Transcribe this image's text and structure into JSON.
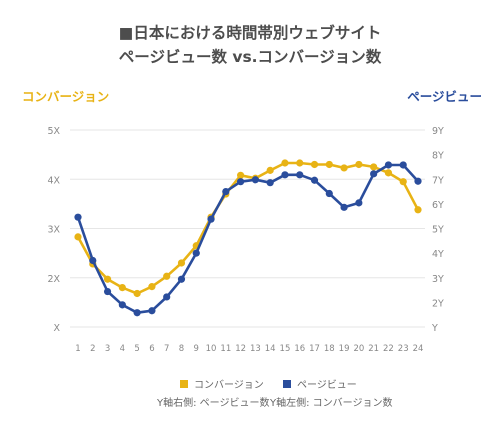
{
  "title": {
    "line1": "■日本における時間帯別ウェブサイト",
    "line2": "ページビュー数 vs.コンバージョン数"
  },
  "axis_titles": {
    "left": "コンバージョン",
    "right": "ページビュー"
  },
  "notes": {
    "right_axis": "Y軸右側: ページビュー数",
    "left_axis": "Y軸左側: コンバージョン数"
  },
  "colors": {
    "conversion": "#e8b315",
    "pageview": "#2a4d9c",
    "grid": "#e6e6e6",
    "tick": "#888888"
  },
  "chart_data": {
    "type": "line",
    "x": [
      1,
      2,
      3,
      4,
      5,
      6,
      7,
      8,
      9,
      10,
      11,
      12,
      13,
      14,
      15,
      16,
      17,
      18,
      19,
      20,
      21,
      22,
      23,
      24
    ],
    "x_tick_labels": [
      "1",
      "2",
      "3",
      "4",
      "5",
      "6",
      "7",
      "8",
      "9",
      "10",
      "11",
      "12",
      "13",
      "14",
      "15",
      "16",
      "17",
      "18",
      "19",
      "20",
      "21",
      "22",
      "23",
      "24"
    ],
    "left_axis": {
      "ticks": [
        1,
        2,
        3,
        4,
        5
      ],
      "tick_labels": [
        "X",
        "2X",
        "3X",
        "4X",
        "5X"
      ],
      "range": [
        1,
        5
      ]
    },
    "right_axis": {
      "ticks": [
        1,
        2,
        3,
        4,
        5,
        6,
        7,
        8,
        9
      ],
      "tick_labels": [
        "Y",
        "2Y",
        "3Y",
        "4Y",
        "5Y",
        "6Y",
        "7Y",
        "8Y",
        "9Y"
      ],
      "range": [
        1,
        9
      ]
    },
    "series": [
      {
        "name": "コンバージョン",
        "axis": "left",
        "color": "#e8b315",
        "values": [
          2.83,
          2.28,
          1.97,
          1.8,
          1.68,
          1.82,
          2.03,
          2.3,
          2.65,
          3.23,
          3.7,
          4.08,
          4.02,
          4.18,
          4.33,
          4.33,
          4.3,
          4.3,
          4.23,
          4.3,
          4.25,
          4.13,
          3.95,
          3.38
        ]
      },
      {
        "name": "ページビュー",
        "axis": "right",
        "color": "#2a4d9c",
        "values": [
          5.46,
          3.7,
          2.44,
          1.9,
          1.58,
          1.66,
          2.22,
          2.94,
          4.0,
          5.38,
          6.5,
          6.9,
          6.98,
          6.86,
          7.18,
          7.18,
          6.96,
          6.42,
          5.86,
          6.04,
          7.22,
          7.58,
          7.58,
          6.92
        ]
      }
    ],
    "legend_position": "bottom",
    "grid": true
  }
}
